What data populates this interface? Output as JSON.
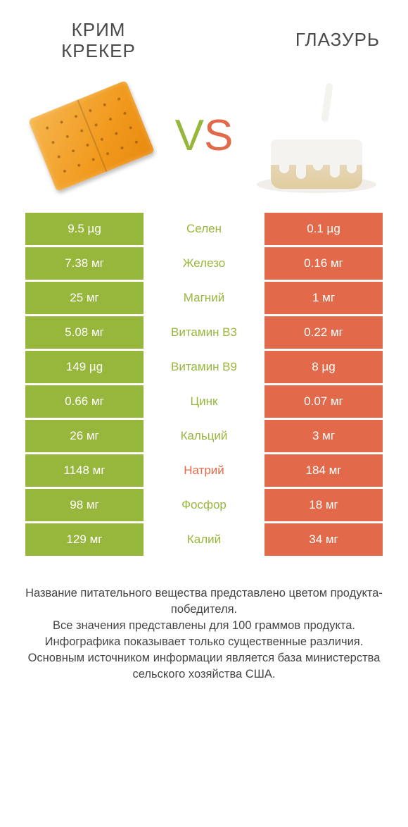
{
  "colors": {
    "left": "#97b63c",
    "right": "#e26a4a",
    "label_left_win": "#97b63c",
    "label_right_win": "#e26a4a",
    "row_bg_left_dim": "#b8cb77",
    "row_bg_right_dim": "#eea189"
  },
  "header": {
    "left_title": "КРИМ\nКРЕКЕР",
    "right_title": "ГЛАЗУРЬ",
    "vs_v": "V",
    "vs_s": "S"
  },
  "table": {
    "rows": [
      {
        "label": "Селен",
        "left": "9.5 µg",
        "right": "0.1 µg",
        "winner": "left"
      },
      {
        "label": "Железо",
        "left": "7.38 мг",
        "right": "0.16 мг",
        "winner": "left"
      },
      {
        "label": "Магний",
        "left": "25 мг",
        "right": "1 мг",
        "winner": "left"
      },
      {
        "label": "Витамин B3",
        "left": "5.08 мг",
        "right": "0.22 мг",
        "winner": "left"
      },
      {
        "label": "Витамин B9",
        "left": "149 µg",
        "right": "8 µg",
        "winner": "left"
      },
      {
        "label": "Цинк",
        "left": "0.66 мг",
        "right": "0.07 мг",
        "winner": "left"
      },
      {
        "label": "Кальций",
        "left": "26 мг",
        "right": "3 мг",
        "winner": "left"
      },
      {
        "label": "Натрий",
        "left": "1148 мг",
        "right": "184 мг",
        "winner": "right"
      },
      {
        "label": "Фосфор",
        "left": "98 мг",
        "right": "18 мг",
        "winner": "left"
      },
      {
        "label": "Калий",
        "left": "129 мг",
        "right": "34 мг",
        "winner": "left"
      }
    ]
  },
  "footer": {
    "line1": "Название питательного вещества представлено цветом продукта-победителя.",
    "line2": "Все значения представлены для 100 граммов продукта.",
    "line3": "Инфографика показывает только существенные различия.",
    "line4": "Основным источником информации является база министерства сельского хозяйства США."
  }
}
